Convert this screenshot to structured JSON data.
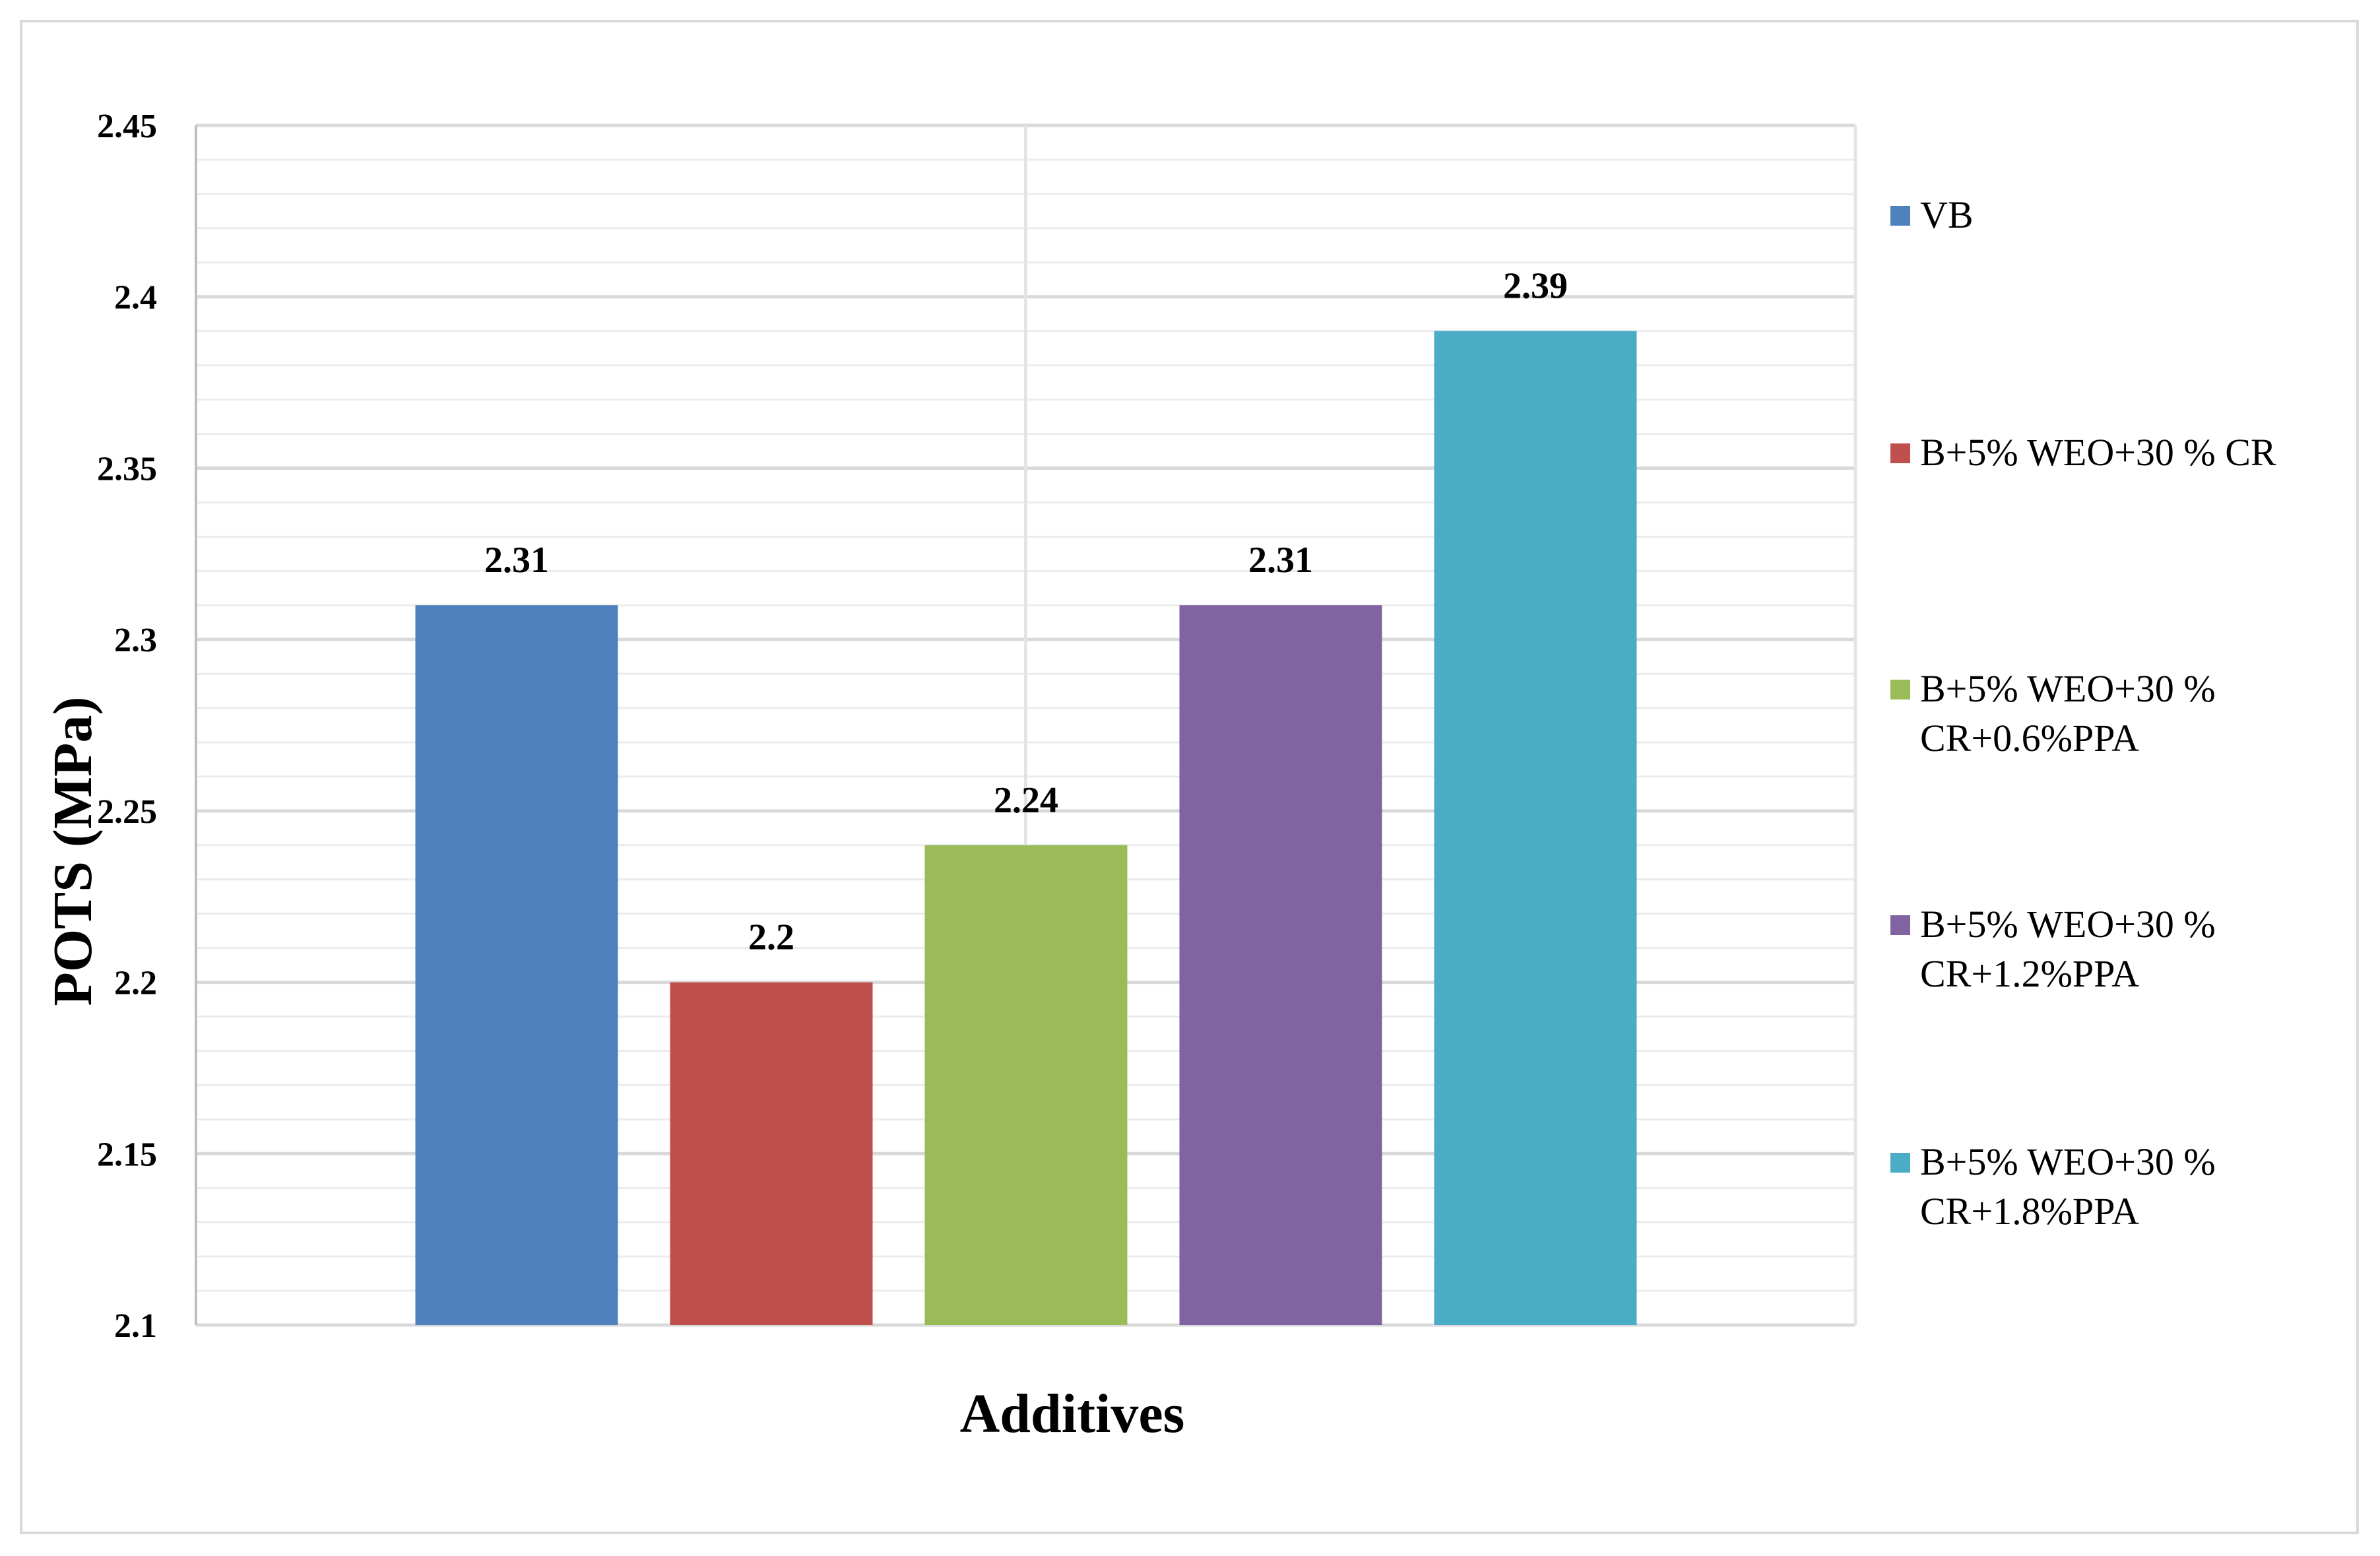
{
  "chart_data": {
    "type": "bar",
    "title": "",
    "xlabel": "Additives",
    "ylabel": "POTS (MPa)",
    "ylim": [
      2.1,
      2.45
    ],
    "yticks": [
      "2.1",
      "2.15",
      "2.2",
      "2.25",
      "2.3",
      "2.35",
      "2.4",
      "2.45"
    ],
    "grid": true,
    "legend_position": "right",
    "series": [
      {
        "name": "VB",
        "value": 2.31,
        "label": "2.31",
        "color": "#4f81bd",
        "legend_lines": [
          "VB"
        ]
      },
      {
        "name": "B+5% WEO+30 % CR",
        "value": 2.2,
        "label": "2.2",
        "color": "#c0504d",
        "legend_lines": [
          "B+5% WEO+30 % CR"
        ]
      },
      {
        "name": "B+5% WEO+30 % CR+0.6%PPA",
        "value": 2.24,
        "label": "2.24",
        "color": "#9bbb59",
        "legend_lines": [
          "B+5% WEO+30 %",
          "CR+0.6%PPA"
        ]
      },
      {
        "name": "B+5% WEO+30 % CR+1.2%PPA",
        "value": 2.31,
        "label": "2.31",
        "color": "#8064a2",
        "legend_lines": [
          "B+5% WEO+30 %",
          "CR+1.2%PPA"
        ]
      },
      {
        "name": "B+5% WEO+30 % CR+1.8%PPA",
        "value": 2.39,
        "label": "2.39",
        "color": "#4bacc6",
        "legend_lines": [
          "B+5% WEO+30 %",
          "CR+1.8%PPA"
        ]
      }
    ]
  }
}
